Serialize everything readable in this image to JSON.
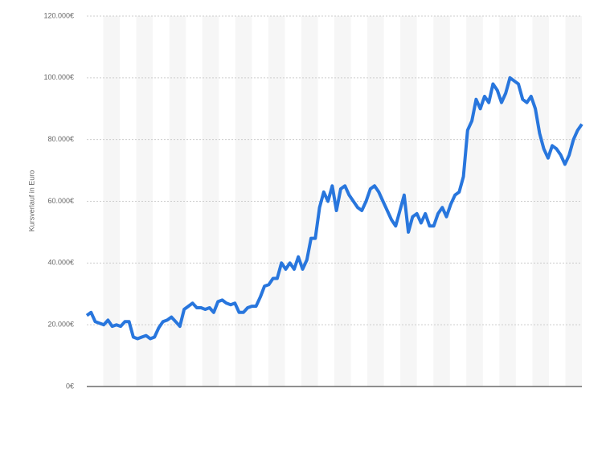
{
  "chart_data": {
    "type": "line",
    "y_label": "Kursverlauf in Euro",
    "ylim": [
      0,
      120000
    ],
    "yticks": [
      {
        "value": 0,
        "label": "0€"
      },
      {
        "value": 20000,
        "label": "20.000€"
      },
      {
        "value": 40000,
        "label": "40.000€"
      },
      {
        "value": 60000,
        "label": "60.000€"
      },
      {
        "value": 80000,
        "label": "80.000€"
      },
      {
        "value": 100000,
        "label": "100.000€"
      },
      {
        "value": 120000,
        "label": "120.000€"
      }
    ],
    "grid": true,
    "color": "#2876dd",
    "values": [
      23000,
      24000,
      21000,
      20500,
      20000,
      21500,
      19500,
      20000,
      19500,
      21000,
      21000,
      16000,
      15500,
      16000,
      16500,
      15500,
      16000,
      19000,
      21000,
      21500,
      22500,
      21000,
      19500,
      25000,
      26000,
      27000,
      25500,
      25500,
      25000,
      25500,
      24000,
      27500,
      28000,
      27000,
      26500,
      27000,
      24000,
      24000,
      25500,
      26000,
      26000,
      29000,
      32500,
      33000,
      35000,
      35000,
      40000,
      38000,
      40000,
      38000,
      42000,
      38000,
      41000,
      48000,
      48000,
      58000,
      63000,
      60000,
      65000,
      57000,
      64000,
      65000,
      62000,
      60000,
      58000,
      57000,
      60000,
      64000,
      65000,
      63000,
      60000,
      57000,
      54000,
      52000,
      57000,
      62000,
      50000,
      55000,
      56000,
      53000,
      56000,
      52000,
      52000,
      56000,
      58000,
      55000,
      59000,
      62000,
      63000,
      68000,
      83000,
      86000,
      93000,
      90000,
      94000,
      92000,
      98000,
      96000,
      92000,
      95000,
      100000,
      99000,
      98000,
      93000,
      92000,
      94000,
      90000,
      82000,
      77000,
      74000,
      78000,
      77000,
      75000,
      72000,
      75000,
      80000,
      83000,
      85000
    ]
  }
}
